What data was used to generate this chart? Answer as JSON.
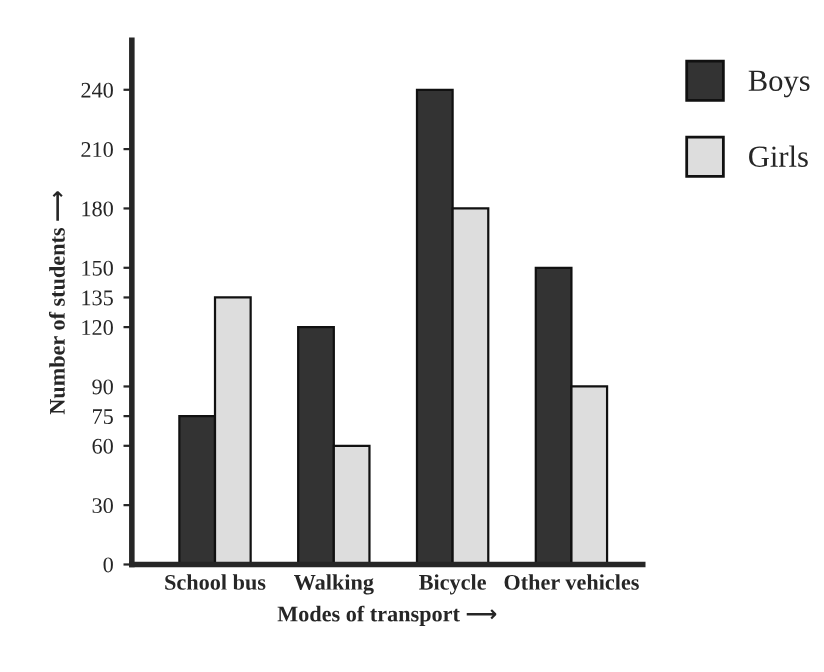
{
  "chart_data": {
    "type": "bar",
    "xlabel": "Modes of transport ⟶",
    "ylabel": "Number of students ⟶",
    "categories": [
      "School bus",
      "Walking",
      "Bicycle",
      "Other vehicles"
    ],
    "series": [
      {
        "name": "Boys",
        "color": "#333333",
        "values": [
          75,
          120,
          240,
          150
        ]
      },
      {
        "name": "Girls",
        "color": "#dddddd",
        "values": [
          135,
          60,
          180,
          90
        ]
      }
    ],
    "ylim": [
      0,
      265
    ],
    "yticks": [
      0,
      30,
      60,
      75,
      90,
      120,
      135,
      150,
      180,
      210,
      240
    ],
    "grid": false,
    "legend": "top right"
  }
}
